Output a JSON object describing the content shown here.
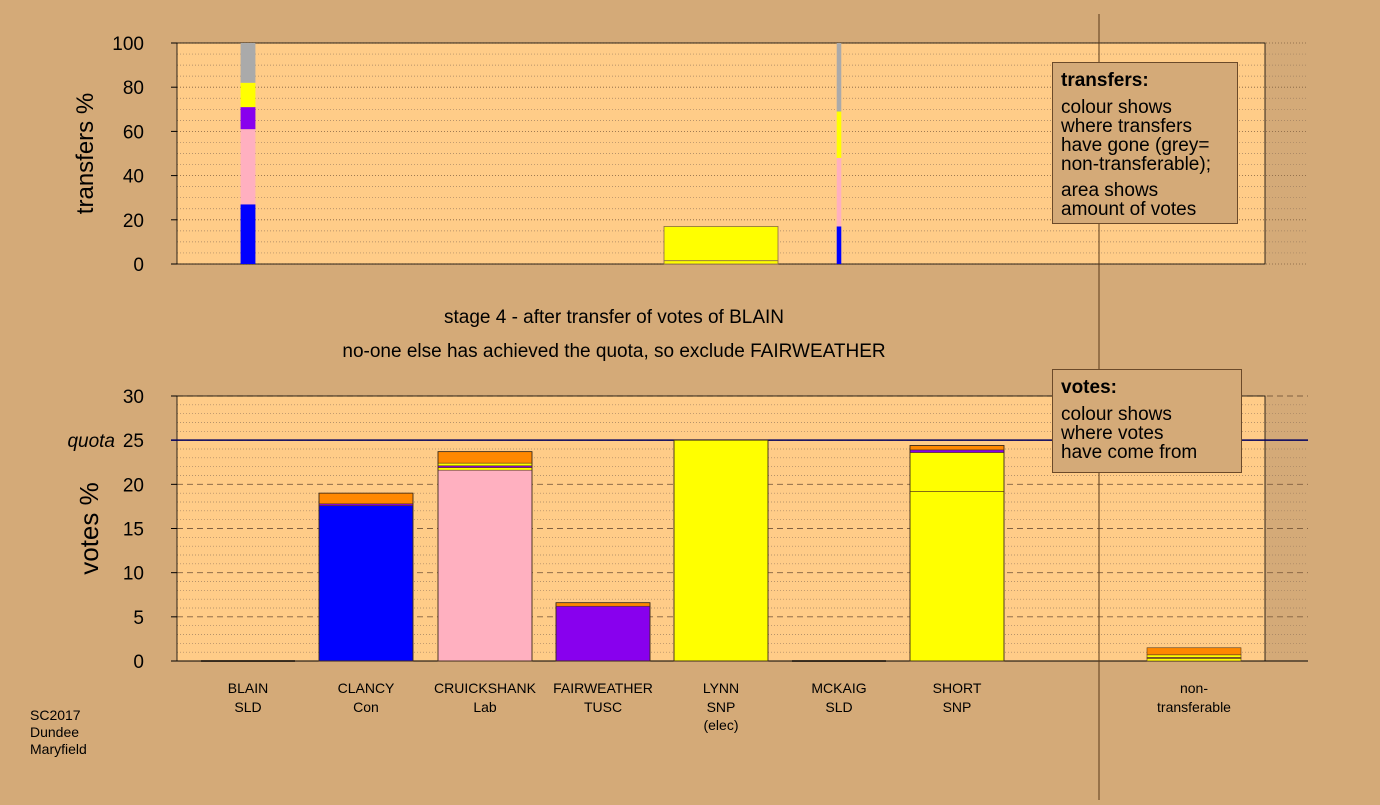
{
  "stage_text": {
    "line1": "stage 4 - after transfer of votes of BLAIN",
    "line2": "no-one else has achieved the quota, so exclude FAIRWEATHER"
  },
  "footer": {
    "line1": "SC2017",
    "line2": "Dundee",
    "line3": "Maryfield"
  },
  "legend_transfers": {
    "title": "transfers:",
    "lines": [
      "colour shows",
      "where transfers",
      "have gone (grey=",
      "non-transferable);"
    ],
    "lines2": [
      "area shows",
      "amount of votes"
    ]
  },
  "legend_votes": {
    "title": "votes:",
    "lines": [
      "colour shows",
      "where votes",
      "have come from"
    ]
  },
  "colors": {
    "SLD": "#ffff00",
    "Con": "#0000ff",
    "Lab": "#ffb0c0",
    "TUSC": "#8800ee",
    "SNP": "#ffff00",
    "nontransferable": "#aaaaaa",
    "later": "#ff8800",
    "plot_bg": "#ffcc88",
    "page_bg": "#d4aa78"
  },
  "chart_data": [
    {
      "type": "bar",
      "ylabel": "transfers %",
      "ylim": [
        0,
        100
      ],
      "yticks": [
        0,
        20,
        40,
        60,
        80,
        100
      ],
      "bars": [
        {
          "candidate": "BLAIN",
          "width_share": 0.13,
          "segments": [
            {
              "to": "CLANCY",
              "color": "#0000ff",
              "value": 27
            },
            {
              "to": "CRUICKSHANK",
              "color": "#ffb0c0",
              "value": 34
            },
            {
              "to": "FAIRWEATHER",
              "color": "#8800ee",
              "value": 10
            },
            {
              "to": "SNP",
              "color": "#ffff00",
              "value": 11
            },
            {
              "to": "non-transferable",
              "color": "#aaaaaa",
              "value": 18
            }
          ]
        },
        {
          "candidate": "LYNN",
          "width_share": 1.0,
          "segments": [
            {
              "to": "SHORT",
              "color": "#ffff00",
              "value": 17
            }
          ]
        },
        {
          "candidate": "SHORT",
          "width_share": 0.04,
          "segments": [
            {
              "to": "CLANCY",
              "color": "#0000ff",
              "value": 17
            },
            {
              "to": "CRUICKSHANK",
              "color": "#ffb0c0",
              "value": 31
            },
            {
              "to": "SNP",
              "color": "#ffff00",
              "value": 21
            },
            {
              "to": "non-transferable",
              "color": "#aaaaaa",
              "value": 31
            }
          ]
        }
      ]
    },
    {
      "type": "bar",
      "ylabel": "votes %",
      "ylim": [
        0,
        30
      ],
      "yticks": [
        0,
        5,
        10,
        15,
        20,
        25,
        30
      ],
      "quota": 25,
      "quota_label": "quota",
      "candidates": [
        {
          "name": "BLAIN",
          "party": "SLD",
          "note": "",
          "segments": []
        },
        {
          "name": "CLANCY",
          "party": "Con",
          "note": "",
          "segments": [
            {
              "color": "#0000ff",
              "value": 17.6
            },
            {
              "color": "#8800ee",
              "value": 0.2
            },
            {
              "color": "#ff8800",
              "value": 1.2
            }
          ]
        },
        {
          "name": "CRUICKSHANK",
          "party": "Lab",
          "note": "",
          "segments": [
            {
              "color": "#ffb0c0",
              "value": 21.6
            },
            {
              "color": "#ffff00",
              "value": 0.3
            },
            {
              "color": "#8800ee",
              "value": 0.2
            },
            {
              "color": "#ffff00",
              "value": 0.3
            },
            {
              "color": "#ff8800",
              "value": 1.3
            }
          ]
        },
        {
          "name": "FAIRWEATHER",
          "party": "TUSC",
          "note": "",
          "segments": [
            {
              "color": "#8800ee",
              "value": 6.2
            },
            {
              "color": "#ff8800",
              "value": 0.4
            }
          ]
        },
        {
          "name": "LYNN",
          "party": "SNP",
          "note": "(elec)",
          "segments": [
            {
              "color": "#ffff00",
              "value": 25.0
            }
          ]
        },
        {
          "name": "MCKAIG",
          "party": "SLD",
          "note": "",
          "segments": []
        },
        {
          "name": "SHORT",
          "party": "SNP",
          "note": "",
          "segments": [
            {
              "color": "#ffff00",
              "value": 19.2
            },
            {
              "color": "#ffff00",
              "value": 4.4
            },
            {
              "color": "#8800ee",
              "value": 0.3
            },
            {
              "color": "#ff8800",
              "value": 0.5
            }
          ]
        }
      ],
      "nontransferable": {
        "label1": "non-",
        "label2": "transferable",
        "segments": [
          {
            "color": "#ffff00",
            "value": 0.3
          },
          {
            "color": "#8800ee",
            "value": 0.1
          },
          {
            "color": "#ffff00",
            "value": 0.3
          },
          {
            "color": "#ff8800",
            "value": 0.8
          }
        ]
      }
    }
  ]
}
